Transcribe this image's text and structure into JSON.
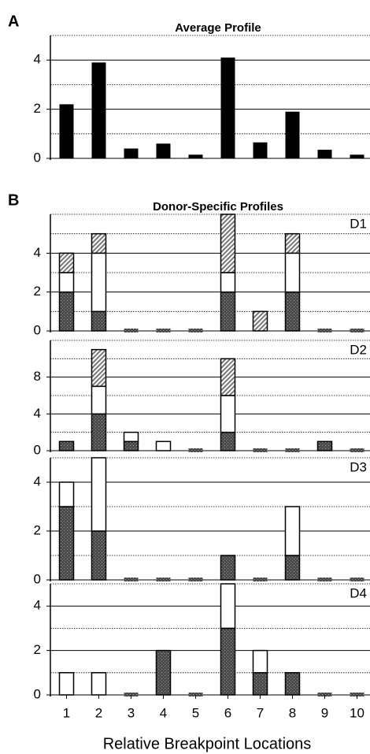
{
  "chart_data": [
    {
      "type": "bar",
      "panel": "A",
      "title": "Average Profile",
      "values": [
        2.2,
        3.9,
        0.4,
        0.6,
        0.15,
        4.1,
        0.65,
        1.9,
        0.35,
        0.15
      ],
      "color": "#000000",
      "ylim": [
        0,
        5
      ],
      "yticks": [
        0,
        2,
        4
      ],
      "minor_yticks": [
        1,
        3,
        5
      ],
      "grid": true
    },
    {
      "type": "stacked_bar",
      "panel": "B",
      "title": "Donor-Specific Profiles",
      "label": "D1",
      "series": [
        {
          "color": "#4a4a4a",
          "pattern": "stipple",
          "values": [
            2,
            1,
            0,
            0,
            0,
            2,
            0,
            2,
            0,
            0
          ]
        },
        {
          "color": "#ffffff",
          "pattern": "solid",
          "values": [
            1,
            3,
            0,
            0,
            0,
            1,
            0,
            2,
            0,
            0
          ]
        },
        {
          "color": "#777777",
          "pattern": "hatch",
          "values": [
            1,
            1,
            0,
            0,
            0,
            3,
            1,
            1,
            0,
            0
          ]
        }
      ],
      "ylim": [
        0,
        6
      ],
      "yticks": [
        0,
        2,
        4
      ],
      "minor_yticks": [
        1,
        3,
        5,
        6
      ],
      "grid": true
    },
    {
      "type": "stacked_bar",
      "label": "D2",
      "series": [
        {
          "color": "#4a4a4a",
          "pattern": "stipple",
          "values": [
            1,
            4,
            1,
            0,
            0,
            2,
            0,
            0,
            1,
            0
          ]
        },
        {
          "color": "#ffffff",
          "pattern": "solid",
          "values": [
            0,
            3,
            1,
            1,
            0,
            4,
            0,
            0,
            0,
            0
          ]
        },
        {
          "color": "#777777",
          "pattern": "hatch",
          "values": [
            0,
            4,
            0,
            0,
            0,
            4,
            0,
            0,
            0,
            0
          ]
        }
      ],
      "ylim": [
        0,
        12
      ],
      "yticks": [
        0,
        4,
        8
      ],
      "minor_yticks": [
        2,
        6,
        10,
        12
      ],
      "grid": true
    },
    {
      "type": "stacked_bar",
      "label": "D3",
      "series": [
        {
          "color": "#4a4a4a",
          "pattern": "stipple",
          "values": [
            3,
            2,
            0,
            0,
            0,
            1,
            0,
            1,
            0,
            0
          ]
        },
        {
          "color": "#ffffff",
          "pattern": "solid",
          "values": [
            1,
            3,
            0,
            0,
            0,
            0,
            0,
            2,
            0,
            0
          ]
        }
      ],
      "ylim": [
        0,
        5
      ],
      "yticks": [
        0,
        2,
        4
      ],
      "minor_yticks": [
        1,
        3,
        5
      ],
      "grid": true
    },
    {
      "type": "stacked_bar",
      "label": "D4",
      "series": [
        {
          "color": "#4a4a4a",
          "pattern": "stipple",
          "values": [
            0,
            0,
            0,
            2,
            0,
            3,
            1,
            1,
            0,
            0
          ]
        },
        {
          "color": "#ffffff",
          "pattern": "solid",
          "values": [
            1,
            1,
            0,
            0,
            0,
            2,
            1,
            0,
            0,
            0
          ]
        }
      ],
      "ylim": [
        0,
        5
      ],
      "yticks": [
        0,
        2,
        4
      ],
      "minor_yticks": [
        1,
        3,
        5
      ],
      "grid": true,
      "categories": [
        "1",
        "2",
        "3",
        "4",
        "5",
        "6",
        "7",
        "8",
        "9",
        "10"
      ],
      "xlabel": "Relative Breakpoint Locations"
    }
  ]
}
